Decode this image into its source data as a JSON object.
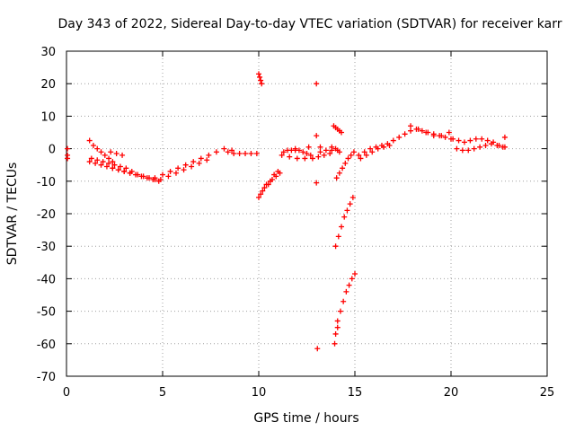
{
  "chart_data": {
    "type": "scatter",
    "title": "Day 343 of 2022, Sidereal Day-to-day VTEC variation (SDTVAR) for receiver karr",
    "xlabel": "GPS time / hours",
    "ylabel": "SDTVAR / TECUs",
    "xlim": [
      0,
      25
    ],
    "ylim": [
      -70,
      30
    ],
    "xticks": [
      "0",
      "5",
      "10",
      "15",
      "20",
      "25"
    ],
    "yticks": [
      "30",
      "20",
      "10",
      "0",
      "-10",
      "-20",
      "-30",
      "-40",
      "-50",
      "-60",
      "-70"
    ],
    "grid": true,
    "marker": "+",
    "series": [
      {
        "name": "SDTVAR",
        "color": "#ff0000",
        "x": [
          0.05,
          0.05,
          0.05,
          1.2,
          1.4,
          1.6,
          1.8,
          2.0,
          2.2,
          2.4,
          1.3,
          1.6,
          1.9,
          2.2,
          2.5,
          2.8,
          3.1,
          3.4,
          3.7,
          4.0,
          4.3,
          4.6,
          1.2,
          1.5,
          1.8,
          2.1,
          2.4,
          2.7,
          3.0,
          3.3,
          3.6,
          3.9,
          4.2,
          4.5,
          4.8,
          2.3,
          2.6,
          2.9,
          2.4,
          2.7,
          3.0,
          3.3,
          4.6,
          5.0,
          5.4,
          5.8,
          6.2,
          6.6,
          7.0,
          7.4,
          7.8,
          8.2,
          8.6,
          4.9,
          5.3,
          5.7,
          6.1,
          6.5,
          6.9,
          7.3,
          8.4,
          8.7,
          9.0,
          9.3,
          9.6,
          9.9,
          10.0,
          10.05,
          10.1,
          10.15,
          10.0,
          10.2,
          10.4,
          10.6,
          10.8,
          11.0,
          10.1,
          10.3,
          10.5,
          10.7,
          10.9,
          11.1,
          11.3,
          11.5,
          11.7,
          11.9,
          12.1,
          12.3,
          12.5,
          12.7,
          11.2,
          11.6,
          12.0,
          12.4,
          12.8,
          13.1,
          13.4,
          13.7,
          11.9,
          12.6,
          13.2,
          13.8,
          13.0,
          13.0,
          13.0,
          13.05,
          13.2,
          13.5,
          13.8,
          13.9,
          14.0,
          14.1,
          14.2,
          14.3,
          14.0,
          14.1,
          14.2,
          14.05,
          14.2,
          14.35,
          14.5,
          14.65,
          14.8,
          14.95,
          14.0,
          14.15,
          14.3,
          14.45,
          14.6,
          14.75,
          14.9,
          13.95,
          14.1,
          14.25,
          14.4,
          14.55,
          14.7,
          14.85,
          15.0,
          14.0,
          14.1,
          15.2,
          15.5,
          15.8,
          16.1,
          16.4,
          16.7,
          17.0,
          17.3,
          17.6,
          17.9,
          18.2,
          18.5,
          18.8,
          19.1,
          19.4,
          19.7,
          20.0,
          15.3,
          15.6,
          15.9,
          16.2,
          16.5,
          16.8,
          17.9,
          18.3,
          18.7,
          19.1,
          19.5,
          19.9,
          20.1,
          20.4,
          20.7,
          21.0,
          21.3,
          21.6,
          21.9,
          22.2,
          22.5,
          22.8,
          20.3,
          20.6,
          20.9,
          21.2,
          21.5,
          21.8,
          22.1,
          22.4,
          22.7,
          22.8
        ],
        "y": [
          0,
          -2,
          -3,
          2.5,
          1,
          0,
          -1,
          -2,
          -3,
          -4,
          -3,
          -3.5,
          -4,
          -4.5,
          -5,
          -5.5,
          -6,
          -7,
          -8,
          -8.5,
          -9,
          -9.5,
          -4,
          -4.5,
          -5,
          -5.5,
          -6,
          -6.5,
          -7,
          -7.5,
          -8,
          -8.5,
          -9,
          -9.5,
          -10,
          -1,
          -1.5,
          -2,
          -6,
          -6.5,
          -7,
          -7.5,
          -9,
          -8,
          -7,
          -6,
          -5,
          -4,
          -3,
          -2,
          -1,
          0,
          -0.5,
          -9.5,
          -8.5,
          -7.5,
          -6.5,
          -5.5,
          -4.5,
          -3.5,
          -1,
          -1.5,
          -1.5,
          -1.5,
          -1.5,
          -1.5,
          23,
          22,
          21,
          20,
          -15,
          -13,
          -11,
          -10,
          -8,
          -7,
          -14,
          -12,
          -11,
          -9.5,
          -8.5,
          -7.5,
          -1,
          -0.5,
          -0.5,
          -0.5,
          -0.5,
          -1,
          -1.5,
          -2,
          -2,
          -2.5,
          -3,
          -3,
          -3,
          -2.5,
          -2,
          -1.5,
          0,
          0.5,
          0.5,
          0.5,
          20,
          4,
          -10.5,
          -61.5,
          -1,
          -0.5,
          -0.5,
          7,
          6.5,
          6,
          5.5,
          5,
          0,
          -0.5,
          -1,
          -9,
          -7.5,
          -6,
          -4.5,
          -3,
          -2,
          -1,
          -30,
          -27,
          -24,
          -21,
          -19,
          -17,
          -15,
          -60,
          -55,
          -50,
          -47,
          -44,
          -42,
          -40,
          -38.5,
          -57,
          -53,
          -2,
          -1,
          0,
          0.5,
          1,
          1.5,
          2.5,
          3.5,
          4.5,
          5.5,
          6,
          5.5,
          5,
          4.5,
          4,
          3.5,
          3,
          -3,
          -2,
          -1,
          0,
          0.5,
          1,
          7,
          6,
          5,
          4,
          4,
          5,
          3,
          2.5,
          2,
          2.5,
          3,
          3,
          2.5,
          2,
          1,
          0.5,
          0,
          -0.5,
          -0.5,
          0,
          0.5,
          1,
          1.5,
          1,
          0.5,
          3.5
        ]
      }
    ]
  }
}
